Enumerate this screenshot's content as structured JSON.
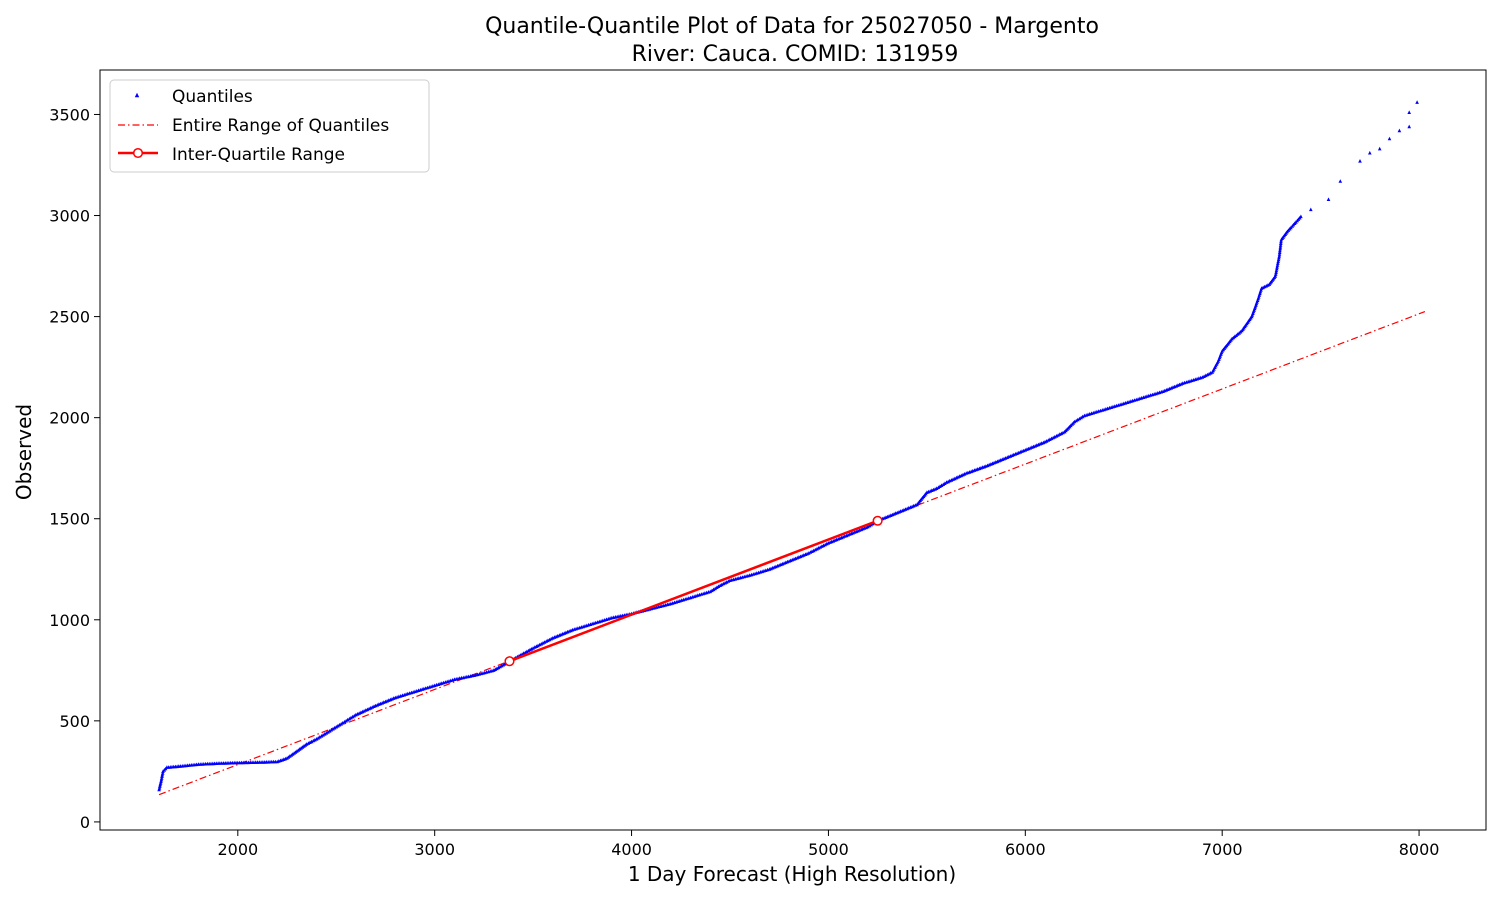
{
  "chart_data": {
    "type": "scatter",
    "title": "Quantile-Quantile Plot of Data for 25027050 - Margento",
    "subtitle": "River: Cauca. COMID: 131959",
    "xlabel": "1 Day Forecast (High Resolution)",
    "ylabel": "Observed",
    "xlim": [
      1300,
      8340
    ],
    "ylim": [
      -40,
      3720
    ],
    "xticks": [
      2000,
      3000,
      4000,
      5000,
      6000,
      7000,
      8000
    ],
    "yticks": [
      0,
      500,
      1000,
      1500,
      2000,
      2500,
      3000,
      3500
    ],
    "grid": false,
    "legend": {
      "position": "top-left",
      "entries": [
        "Quantiles",
        "Entire Range of Quantiles",
        "Inter-Quartile Range"
      ]
    },
    "colors": {
      "quantiles": "#0000ff",
      "entire_range": "#ff0000",
      "iqr": "#ff0000"
    },
    "series": [
      {
        "name": "Quantiles",
        "style": "points",
        "knots": [
          [
            1600,
            160
          ],
          [
            1610,
            200
          ],
          [
            1620,
            250
          ],
          [
            1640,
            270
          ],
          [
            1700,
            275
          ],
          [
            1800,
            285
          ],
          [
            1900,
            290
          ],
          [
            2000,
            293
          ],
          [
            2100,
            295
          ],
          [
            2200,
            298
          ],
          [
            2250,
            315
          ],
          [
            2300,
            350
          ],
          [
            2350,
            385
          ],
          [
            2400,
            410
          ],
          [
            2450,
            440
          ],
          [
            2500,
            470
          ],
          [
            2550,
            500
          ],
          [
            2600,
            530
          ],
          [
            2700,
            575
          ],
          [
            2800,
            615
          ],
          [
            2900,
            645
          ],
          [
            3000,
            675
          ],
          [
            3100,
            705
          ],
          [
            3200,
            725
          ],
          [
            3300,
            750
          ],
          [
            3380,
            795
          ],
          [
            3500,
            860
          ],
          [
            3600,
            910
          ],
          [
            3700,
            950
          ],
          [
            3800,
            980
          ],
          [
            3900,
            1010
          ],
          [
            4000,
            1030
          ],
          [
            4100,
            1055
          ],
          [
            4200,
            1080
          ],
          [
            4300,
            1110
          ],
          [
            4400,
            1140
          ],
          [
            4450,
            1170
          ],
          [
            4500,
            1195
          ],
          [
            4600,
            1220
          ],
          [
            4700,
            1250
          ],
          [
            4800,
            1290
          ],
          [
            4900,
            1330
          ],
          [
            5000,
            1380
          ],
          [
            5100,
            1420
          ],
          [
            5200,
            1460
          ],
          [
            5250,
            1490
          ],
          [
            5350,
            1530
          ],
          [
            5450,
            1570
          ],
          [
            5500,
            1630
          ],
          [
            5550,
            1650
          ],
          [
            5600,
            1680
          ],
          [
            5700,
            1725
          ],
          [
            5800,
            1760
          ],
          [
            5900,
            1800
          ],
          [
            6000,
            1840
          ],
          [
            6100,
            1880
          ],
          [
            6200,
            1930
          ],
          [
            6250,
            1980
          ],
          [
            6300,
            2010
          ],
          [
            6400,
            2040
          ],
          [
            6500,
            2070
          ],
          [
            6600,
            2100
          ],
          [
            6700,
            2130
          ],
          [
            6800,
            2170
          ],
          [
            6900,
            2200
          ],
          [
            6950,
            2225
          ],
          [
            6980,
            2280
          ],
          [
            7000,
            2330
          ],
          [
            7050,
            2390
          ],
          [
            7100,
            2430
          ],
          [
            7150,
            2500
          ],
          [
            7180,
            2580
          ],
          [
            7200,
            2640
          ],
          [
            7240,
            2660
          ],
          [
            7270,
            2700
          ],
          [
            7290,
            2800
          ],
          [
            7300,
            2880
          ],
          [
            7330,
            2920
          ],
          [
            7400,
            2995
          ]
        ],
        "extra_points": [
          [
            7450,
            3030
          ],
          [
            7540,
            3080
          ],
          [
            7600,
            3170
          ],
          [
            7700,
            3270
          ],
          [
            7750,
            3310
          ],
          [
            7800,
            3330
          ],
          [
            7850,
            3380
          ],
          [
            7900,
            3420
          ],
          [
            7950,
            3440
          ],
          [
            7950,
            3510
          ],
          [
            7990,
            3560
          ]
        ]
      },
      {
        "name": "Entire Range of Quantiles",
        "style": "dash-dot",
        "x": [
          1600,
          8030
        ],
        "y": [
          135,
          2525
        ]
      },
      {
        "name": "Inter-Quartile Range",
        "style": "solid-with-markers",
        "x": [
          3380,
          5250
        ],
        "y": [
          795,
          1490
        ]
      }
    ]
  }
}
